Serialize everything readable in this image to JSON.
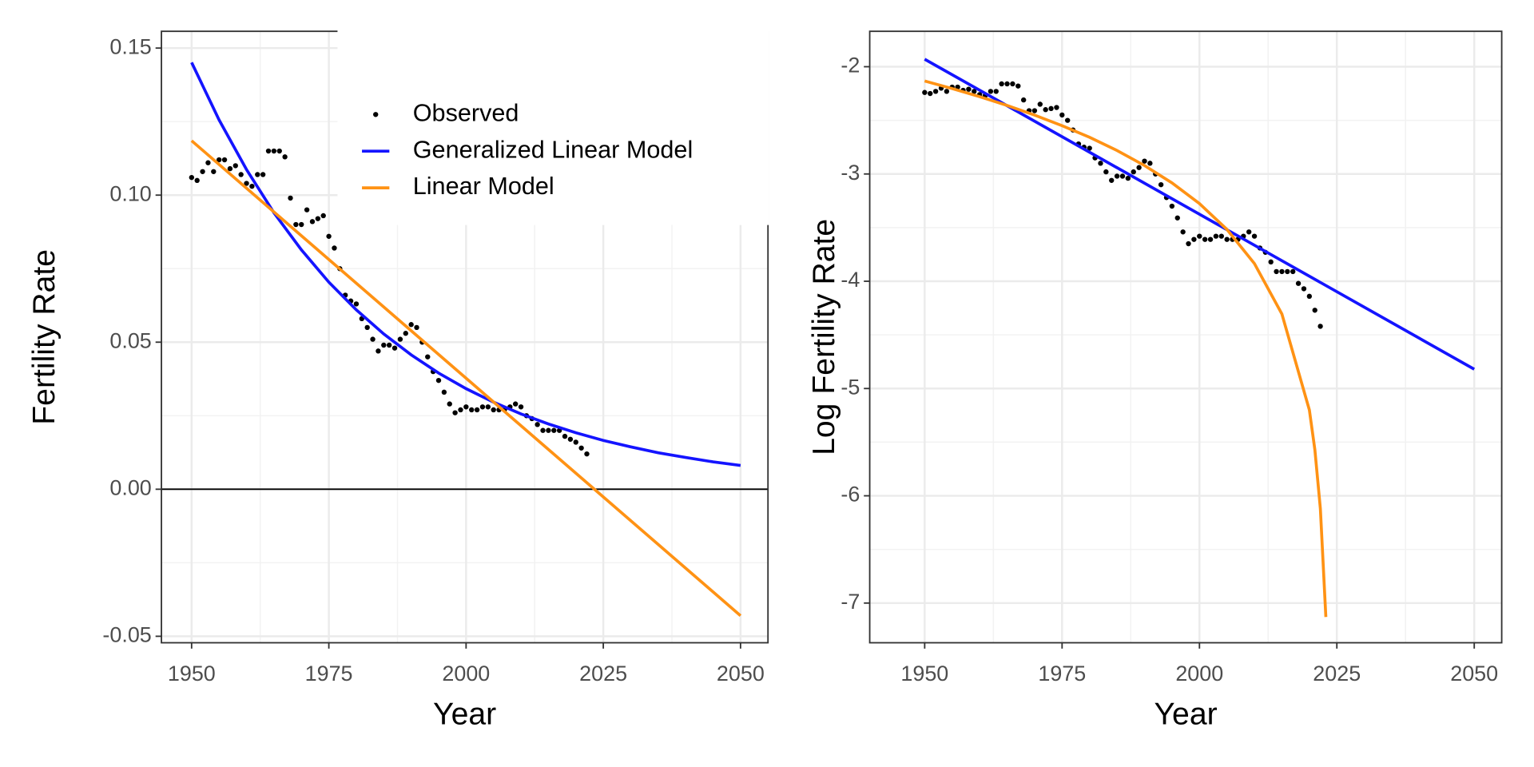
{
  "chart_data": [
    {
      "type": "line",
      "xlabel": "Year",
      "ylabel": "Fertility Rate",
      "xlim": [
        1944.5,
        2055
      ],
      "xticks": [
        1950,
        1975,
        2000,
        2025,
        2050
      ],
      "ylim": [
        -0.0522,
        0.1557
      ],
      "yticks": [
        {
          "value": -0.05,
          "label": "-0.05"
        },
        {
          "value": 0,
          "label": "0.00"
        },
        0.05,
        {
          "value": 0.1,
          "label": "0.10"
        },
        0.15
      ],
      "hline": 0,
      "grid": true,
      "legend": "top",
      "series": [
        {
          "name": "Observed",
          "color": "#000000",
          "style": "points",
          "x": [
            1950,
            1951,
            1952,
            1953,
            1954,
            1955,
            1956,
            1957,
            1958,
            1959,
            1960,
            1961,
            1962,
            1963,
            1964,
            1965,
            1966,
            1967,
            1968,
            1969,
            1970,
            1971,
            1972,
            1973,
            1974,
            1975,
            1976,
            1977,
            1978,
            1979,
            1980,
            1981,
            1982,
            1983,
            1984,
            1985,
            1986,
            1987,
            1988,
            1989,
            1990,
            1991,
            1992,
            1993,
            1994,
            1995,
            1996,
            1997,
            1998,
            1999,
            2000,
            2001,
            2002,
            2003,
            2004,
            2005,
            2006,
            2007,
            2008,
            2009,
            2010,
            2011,
            2012,
            2013,
            2014,
            2015,
            2016,
            2017,
            2018,
            2019,
            2020,
            2021,
            2022
          ],
          "values": [
            0.106,
            0.105,
            0.108,
            0.111,
            0.108,
            0.112,
            0.112,
            0.109,
            0.11,
            0.107,
            0.104,
            0.103,
            0.107,
            0.107,
            0.115,
            0.115,
            0.115,
            0.113,
            0.099,
            0.09,
            0.09,
            0.095,
            0.091,
            0.092,
            0.093,
            0.086,
            0.082,
            0.075,
            0.066,
            0.064,
            0.063,
            0.058,
            0.055,
            0.051,
            0.047,
            0.049,
            0.049,
            0.048,
            0.051,
            0.053,
            0.056,
            0.055,
            0.05,
            0.045,
            0.04,
            0.037,
            0.033,
            0.029,
            0.026,
            0.027,
            0.028,
            0.027,
            0.027,
            0.028,
            0.028,
            0.027,
            0.027,
            0.027,
            0.028,
            0.029,
            0.028,
            0.025,
            0.024,
            0.022,
            0.02,
            0.02,
            0.02,
            0.02,
            0.018,
            0.017,
            0.016,
            0.014,
            0.012
          ]
        },
        {
          "name": "Generalized Linear Model",
          "color": "#1414ff",
          "style": "line",
          "x": [
            1950,
            1955,
            1960,
            1965,
            1970,
            1975,
            1980,
            1985,
            1990,
            1995,
            2000,
            2005,
            2010,
            2015,
            2020,
            2025,
            2030,
            2035,
            2040,
            2045,
            2050
          ],
          "values": [
            0.1451,
            0.1256,
            0.1087,
            0.094,
            0.0814,
            0.0704,
            0.061,
            0.0528,
            0.0457,
            0.0395,
            0.0342,
            0.0296,
            0.0256,
            0.0222,
            0.0192,
            0.0166,
            0.0144,
            0.0124,
            0.0108,
            0.0093,
            0.0081
          ]
        },
        {
          "name": "Linear Model",
          "color": "#ff9214",
          "style": "line",
          "x": [
            1950,
            2050
          ],
          "values": [
            0.1185,
            -0.043
          ]
        }
      ]
    },
    {
      "type": "line",
      "xlabel": "Year",
      "ylabel": "Log Fertility Rate",
      "xlim": [
        1940,
        2055
      ],
      "xticks": [
        1950,
        1975,
        2000,
        2025,
        2050
      ],
      "ylim": [
        -7.37,
        -1.67
      ],
      "yticks": [
        -7,
        -6,
        -5,
        -4,
        -3,
        -2
      ],
      "grid": true,
      "series": [
        {
          "color": "#000000",
          "style": "points",
          "x": [
            1950,
            1951,
            1952,
            1953,
            1954,
            1955,
            1956,
            1957,
            1958,
            1959,
            1960,
            1961,
            1962,
            1963,
            1964,
            1965,
            1966,
            1967,
            1968,
            1969,
            1970,
            1971,
            1972,
            1973,
            1974,
            1975,
            1976,
            1977,
            1978,
            1979,
            1980,
            1981,
            1982,
            1983,
            1984,
            1985,
            1986,
            1987,
            1988,
            1989,
            1990,
            1991,
            1992,
            1993,
            1994,
            1995,
            1996,
            1997,
            1998,
            1999,
            2000,
            2001,
            2002,
            2003,
            2004,
            2005,
            2006,
            2007,
            2008,
            2009,
            2010,
            2011,
            2012,
            2013,
            2014,
            2015,
            2016,
            2017,
            2018,
            2019,
            2020,
            2021,
            2022
          ],
          "values": [
            -2.24,
            -2.25,
            -2.23,
            -2.2,
            -2.23,
            -2.19,
            -2.19,
            -2.22,
            -2.21,
            -2.23,
            -2.26,
            -2.27,
            -2.23,
            -2.23,
            -2.16,
            -2.16,
            -2.16,
            -2.18,
            -2.31,
            -2.41,
            -2.41,
            -2.35,
            -2.4,
            -2.39,
            -2.38,
            -2.45,
            -2.5,
            -2.59,
            -2.72,
            -2.75,
            -2.76,
            -2.85,
            -2.9,
            -2.98,
            -3.06,
            -3.02,
            -3.02,
            -3.04,
            -2.98,
            -2.94,
            -2.88,
            -2.9,
            -3.0,
            -3.1,
            -3.22,
            -3.3,
            -3.41,
            -3.54,
            -3.65,
            -3.61,
            -3.58,
            -3.61,
            -3.61,
            -3.58,
            -3.58,
            -3.61,
            -3.61,
            -3.61,
            -3.58,
            -3.54,
            -3.58,
            -3.69,
            -3.73,
            -3.82,
            -3.91,
            -3.91,
            -3.91,
            -3.91,
            -4.02,
            -4.07,
            -4.14,
            -4.27,
            -4.42
          ]
        },
        {
          "color": "#1414ff",
          "style": "line",
          "x": [
            1950,
            2050
          ],
          "values": [
            -1.93,
            -4.82
          ]
        },
        {
          "color": "#ff9214",
          "style": "line",
          "x": [
            1950,
            1955,
            1960,
            1965,
            1970,
            1975,
            1980,
            1985,
            1990,
            1995,
            2000,
            2005,
            2010,
            2015,
            2020,
            2021,
            2022,
            2023
          ],
          "values": [
            -2.133,
            -2.204,
            -2.279,
            -2.361,
            -2.451,
            -2.55,
            -2.658,
            -2.781,
            -2.921,
            -3.083,
            -3.276,
            -3.517,
            -3.835,
            -4.305,
            -5.2,
            -5.57,
            -6.12,
            -7.13
          ]
        }
      ]
    }
  ]
}
